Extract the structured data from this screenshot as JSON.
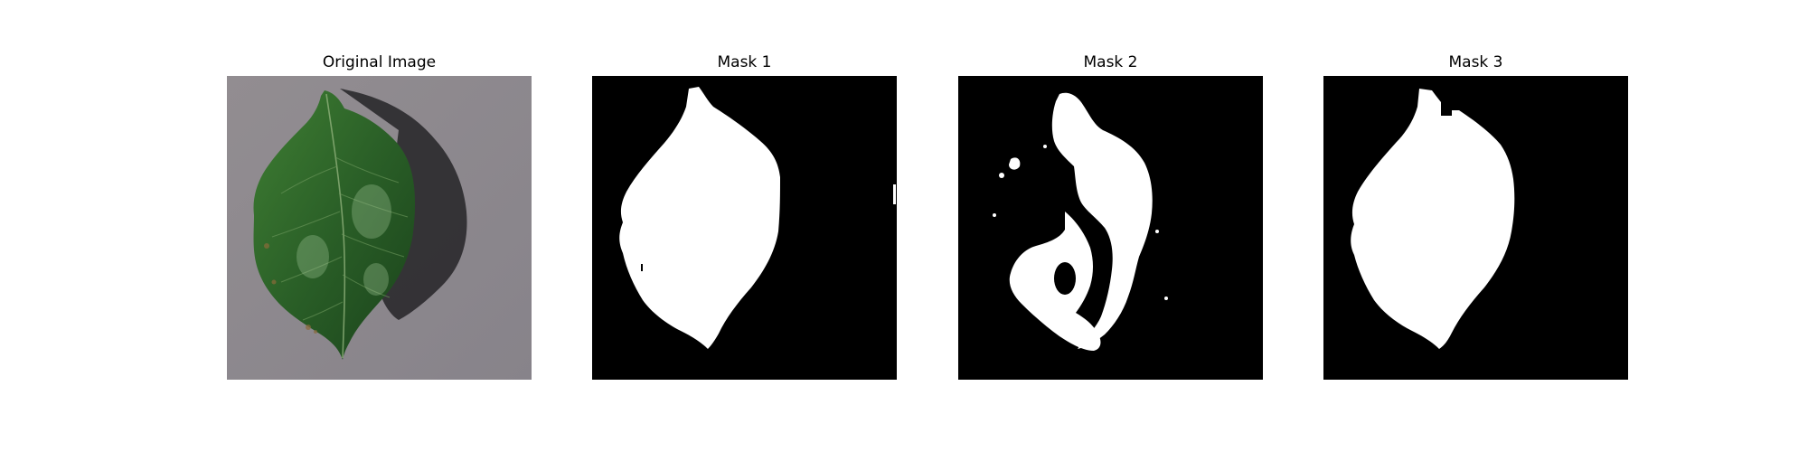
{
  "panels": [
    {
      "title": "Original Image"
    },
    {
      "title": "Mask 1"
    },
    {
      "title": "Mask 2"
    },
    {
      "title": "Mask 3"
    }
  ],
  "colors": {
    "background": "#ffffff",
    "mask_foreground": "#ffffff",
    "mask_background": "#000000",
    "surface_gray": "#8e8a8d",
    "leaf_dark_green": "#1d4a1e",
    "leaf_green": "#2f6b2c",
    "shadow": "#2a2a2c"
  }
}
